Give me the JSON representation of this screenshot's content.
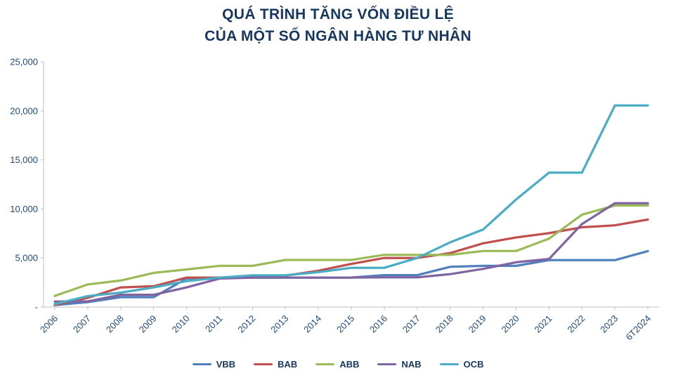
{
  "title": {
    "line1": "QUÁ TRÌNH TĂNG VỐN ĐIỀU LỆ",
    "line2": "CỦA MỘT SỐ NGÂN HÀNG TƯ NHÂN"
  },
  "chart_data": {
    "type": "line",
    "title": "QUÁ TRÌNH TĂNG VỐN ĐIỀU LỆ CỦA MỘT SỐ NGÂN HÀNG TƯ NHÂN",
    "xlabel": "",
    "ylabel": "",
    "categories": [
      "2006",
      "2007",
      "2008",
      "2009",
      "2010",
      "2011",
      "2012",
      "2013",
      "2014",
      "2015",
      "2016",
      "2017",
      "2018",
      "2019",
      "2020",
      "2021",
      "2022",
      "2023",
      "6T2024"
    ],
    "series": [
      {
        "name": "VBB",
        "color": "#4F81BD",
        "values": [
          200,
          500,
          1000,
          1000,
          2900,
          3000,
          3000,
          3000,
          3000,
          3000,
          3250,
          3250,
          4100,
          4200,
          4200,
          4780,
          4780,
          4780,
          5700
        ]
      },
      {
        "name": "BAB",
        "color": "#C0504D",
        "values": [
          200,
          940,
          2000,
          2120,
          3000,
          3000,
          3000,
          3200,
          3700,
          4400,
          5000,
          5000,
          5500,
          6500,
          7090,
          7530,
          8130,
          8330,
          8920
        ]
      },
      {
        "name": "ABB",
        "color": "#9BBB59",
        "values": [
          1130,
          2300,
          2700,
          3480,
          3830,
          4200,
          4200,
          4800,
          4800,
          4800,
          5320,
          5320,
          5320,
          5710,
          5710,
          6970,
          9410,
          10350,
          10350
        ]
      },
      {
        "name": "NAB",
        "color": "#8064A2",
        "values": [
          550,
          580,
          1250,
          1250,
          2000,
          2900,
          3000,
          3000,
          3000,
          3000,
          3020,
          3020,
          3350,
          3890,
          4560,
          4900,
          8460,
          10580,
          10580
        ]
      },
      {
        "name": "OCB",
        "color": "#4BACC6",
        "values": [
          300,
          1110,
          1470,
          2000,
          2640,
          3000,
          3230,
          3230,
          3550,
          4000,
          4000,
          5000,
          6600,
          7900,
          10960,
          13700,
          13700,
          20550,
          20550
        ]
      }
    ],
    "ylim": [
      0,
      25000
    ],
    "ytick_step": 5000,
    "ytick_labels": [
      "-",
      "5,000",
      "10,000",
      "15,000",
      "20,000",
      "25,000"
    ],
    "grid": false,
    "legend_position": "bottom"
  }
}
